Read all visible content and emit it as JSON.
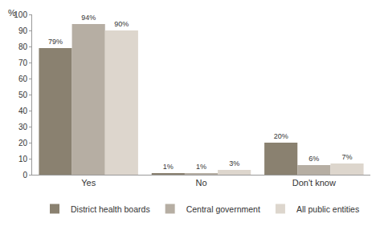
{
  "chart_data": {
    "type": "bar",
    "y_label": "%",
    "categories": [
      "Yes",
      "No",
      "Don't know"
    ],
    "series": [
      {
        "name": "District health boards",
        "color": "#8a8170",
        "values": [
          79,
          1,
          20
        ],
        "value_labels": [
          "79%",
          "1%",
          "20%"
        ]
      },
      {
        "name": "Central government",
        "color": "#b6aea3",
        "values": [
          94,
          1,
          6
        ],
        "value_labels": [
          "94%",
          "1%",
          "6%"
        ]
      },
      {
        "name": "All public entities",
        "color": "#ddd6cd",
        "values": [
          90,
          3,
          7
        ],
        "value_labels": [
          "90%",
          "3%",
          "7%"
        ]
      }
    ],
    "ylim": [
      0,
      100
    ],
    "yticks": [
      0,
      10,
      20,
      30,
      40,
      50,
      60,
      70,
      80,
      90,
      100
    ],
    "grid": false,
    "legend": "bottom",
    "data_labels": true
  }
}
